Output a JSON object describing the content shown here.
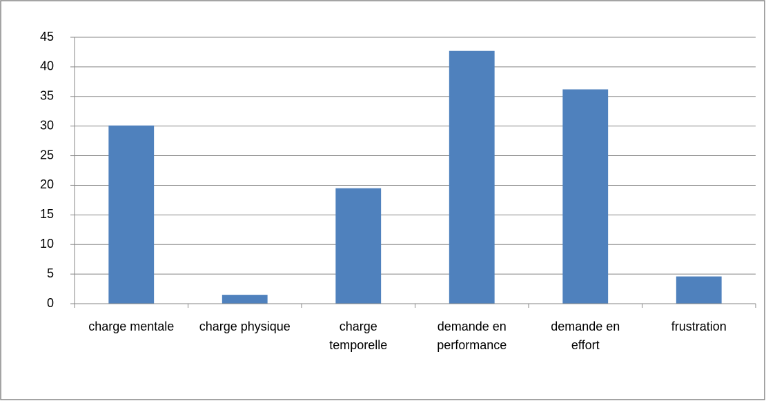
{
  "chart_data": {
    "type": "bar",
    "categories": [
      "charge mentale",
      "charge physique",
      "charge temporelle",
      "demande en performance",
      "demande en effort",
      "frustration"
    ],
    "values": [
      30.1,
      1.5,
      19.5,
      42.7,
      36.2,
      4.6
    ],
    "color": "#4f81bd",
    "ylim": [
      0,
      45
    ],
    "yticks": [
      0,
      5,
      10,
      15,
      20,
      25,
      30,
      35,
      40,
      45
    ],
    "grid": true
  }
}
